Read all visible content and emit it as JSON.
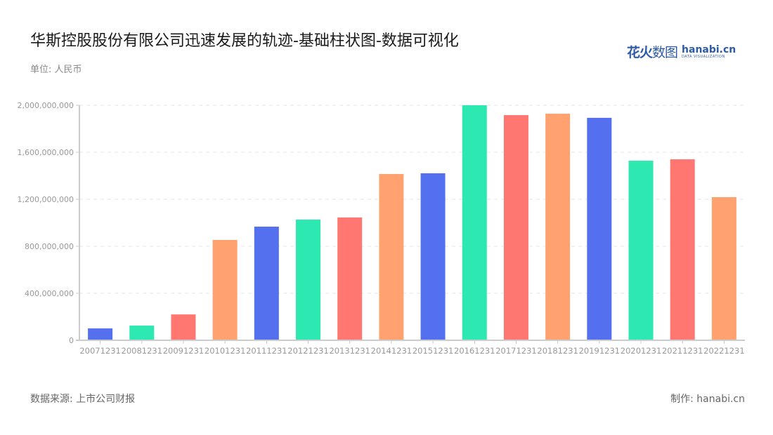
{
  "header": {
    "title": "华斯控股股份有限公司迅速发展的轨迹-基础柱状图-数据可视化",
    "unit": "单位: 人民币"
  },
  "logo": {
    "cn_bold": "花火",
    "cn_light": "数图",
    "en_main": "hanabi.cn",
    "en_sub": "DATA VISUALIZATION"
  },
  "footer": {
    "source": "数据来源: 上市公司财报",
    "credit": "制作: hanabi.cn"
  },
  "colors": {
    "palette": [
      "#5470ef",
      "#2de8b0",
      "#ff7770",
      "#ffa26f"
    ],
    "grid": "#e6e6e6",
    "axis": "#cccccc",
    "tick_label": "#999999"
  },
  "chart_data": {
    "type": "bar",
    "title": "华斯控股股份有限公司迅速发展的轨迹-基础柱状图-数据可视化",
    "xlabel": "",
    "ylabel": "单位: 人民币",
    "categories": [
      "20071231",
      "20081231",
      "20091231",
      "20101231",
      "20111231",
      "20121231",
      "20131231",
      "20141231",
      "20151231",
      "20161231",
      "20171231",
      "20181231",
      "20191231",
      "20201231",
      "20211231",
      "20221231"
    ],
    "values": [
      101000000,
      125000000,
      220000000,
      854000000,
      967000000,
      1027000000,
      1045000000,
      1415000000,
      1421000000,
      2000000000,
      1916000000,
      1928000000,
      1893000000,
      1528000000,
      1540000000,
      1218000000
    ],
    "bar_colors": [
      "#5470ef",
      "#2de8b0",
      "#ff7770",
      "#ffa26f",
      "#5470ef",
      "#2de8b0",
      "#ff7770",
      "#ffa26f",
      "#5470ef",
      "#2de8b0",
      "#ff7770",
      "#ffa26f",
      "#5470ef",
      "#2de8b0",
      "#ff7770",
      "#ffa26f"
    ],
    "ylim": [
      0,
      2000000000
    ],
    "yticks": [
      0,
      400000000,
      800000000,
      1200000000,
      1600000000,
      2000000000
    ],
    "ytick_labels": [
      "0",
      "400,000,000",
      "800,000,000",
      "1,200,000,000",
      "1,600,000,000",
      "2,000,000,000"
    ],
    "grid": true,
    "legend": null
  }
}
